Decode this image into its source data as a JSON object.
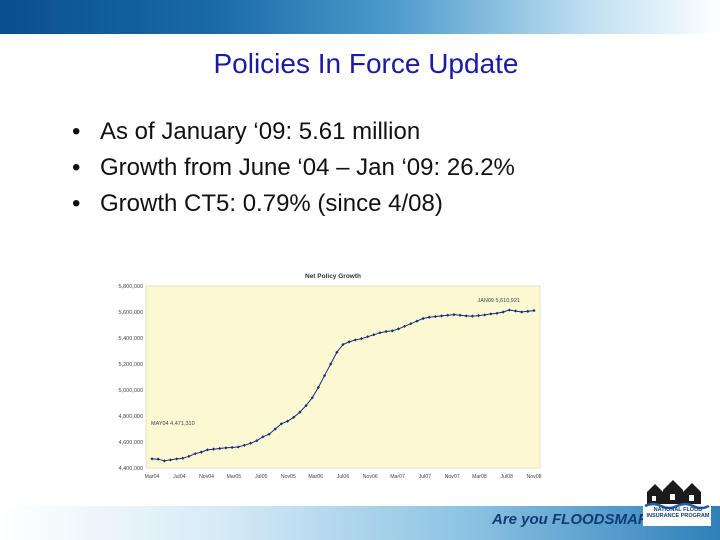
{
  "slide": {
    "title": "Policies In Force Update",
    "bullets": [
      "As of January ‘09:  5.61 million",
      "Growth from June ‘04 – Jan ‘09:  26.2%",
      "Growth CT5:  0.79% (since 4/08)"
    ],
    "bullet_symbol": "•"
  },
  "footer": {
    "tagline": "Are you FLOODSMART?",
    "logo_text": "NATIONAL FLOOD INSURANCE PROGRAM",
    "logo_icon": "houses-icon"
  },
  "colors": {
    "title": "#1a1aa6",
    "plot_background": "#fbf9d2",
    "series": "#1a2a7a",
    "band_dark": "#0a4f8e"
  },
  "chart_data": {
    "type": "line",
    "title": "Net Policy Growth",
    "xlabel": "",
    "ylabel": "",
    "ylim": [
      4400000,
      5800000
    ],
    "yticks": [
      "5,800,000",
      "5,600,000",
      "5,400,000",
      "5,200,000",
      "5,000,000",
      "4,800,000",
      "4,600,000",
      "4,400,000"
    ],
    "ytick_values": [
      5800000,
      5600000,
      5400000,
      5200000,
      5000000,
      4800000,
      4600000,
      4400000
    ],
    "xticks": [
      "Mar04",
      "Jul04",
      "Nov04",
      "Mar05",
      "Jul05",
      "Nov05",
      "Mar06",
      "Jul06",
      "Nov06",
      "Mar07",
      "Jul07",
      "Nov07",
      "Mar08",
      "Jul08",
      "Nov08"
    ],
    "grid": false,
    "legend": "none",
    "annotations": [
      "JAN09 5,610,921",
      "MAY04 4,471,310"
    ],
    "series": [
      {
        "values": [
          4470000,
          4468000,
          4455000,
          4462000,
          4470000,
          4475000,
          4490000,
          4510000,
          4522000,
          4540000,
          4545000,
          4550000,
          4555000,
          4558000,
          4562000,
          4575000,
          4590000,
          4610000,
          4640000,
          4660000,
          4700000,
          4740000,
          4760000,
          4790000,
          4830000,
          4880000,
          4940000,
          5020000,
          5110000,
          5200000,
          5290000,
          5350000,
          5370000,
          5385000,
          5395000,
          5410000,
          5425000,
          5440000,
          5450000,
          5455000,
          5470000,
          5490000,
          5510000,
          5530000,
          5550000,
          5560000,
          5565000,
          5570000,
          5575000,
          5580000,
          5575000,
          5570000,
          5568000,
          5572000,
          5578000,
          5585000,
          5590000,
          5600000,
          5615000,
          5608000,
          5600000,
          5605000,
          5610921
        ]
      }
    ]
  }
}
